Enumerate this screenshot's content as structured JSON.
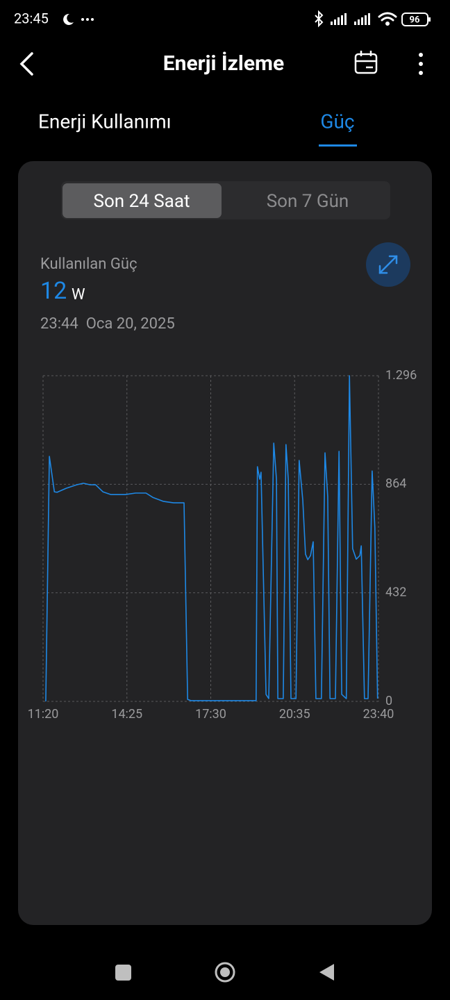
{
  "status_bar": {
    "time": "23:45",
    "battery": "96"
  },
  "header": {
    "title": "Enerji İzleme"
  },
  "tabs": [
    "Enerji Kullanımı",
    "Güç"
  ],
  "range_toggle": [
    "Son 24 Saat",
    "Son 7 Gün"
  ],
  "reading": {
    "label": "Kullanılan Güç",
    "value": 12,
    "unit": "W",
    "timestamp": "23:44  Oca 20, 2025"
  },
  "chart_data": {
    "type": "line",
    "x": [
      686,
      694,
      705,
      711,
      731,
      754,
      769,
      784,
      796,
      812,
      830,
      861,
      884,
      907,
      922,
      945,
      968,
      991,
      999,
      1006,
      1144,
      1150,
      1153,
      1158,
      1161,
      1172,
      1178,
      1189,
      1195,
      1198,
      1210,
      1216,
      1221,
      1227,
      1238,
      1245,
      1253,
      1259,
      1264,
      1270,
      1276,
      1282,
      1294,
      1302,
      1308,
      1313,
      1325,
      1333,
      1339,
      1349,
      1356,
      1363,
      1371,
      1379,
      1382,
      1389,
      1397,
      1406,
      1412,
      1418
    ],
    "series": [
      {
        "color": "#1e88e5",
        "values": [
          0,
          975,
          834,
          832,
          848,
          862,
          868,
          862,
          862,
          834,
          823,
          823,
          829,
          829,
          812,
          796,
          790,
          790,
          8,
          3,
          3,
          3,
          934,
          884,
          912,
          28,
          11,
          1028,
          884,
          11,
          11,
          1022,
          884,
          11,
          11,
          959,
          801,
          586,
          564,
          580,
          635,
          11,
          11,
          989,
          815,
          11,
          11,
          995,
          28,
          11,
          1296,
          608,
          566,
          580,
          619,
          11,
          11,
          917,
          691,
          11
        ]
      }
    ],
    "xlim": [
      680,
      1420
    ],
    "xticks": [
      {
        "value": 680,
        "label": "11:20"
      },
      {
        "value": 865,
        "label": "14:25"
      },
      {
        "value": 1050,
        "label": "17:30"
      },
      {
        "value": 1235,
        "label": "20:35"
      },
      {
        "value": 1420,
        "label": "23:40"
      }
    ],
    "ylim": [
      0,
      1296
    ],
    "yticks": [
      0,
      432,
      864,
      {
        "value": 1296,
        "label": "1.296"
      }
    ],
    "grid": true
  }
}
